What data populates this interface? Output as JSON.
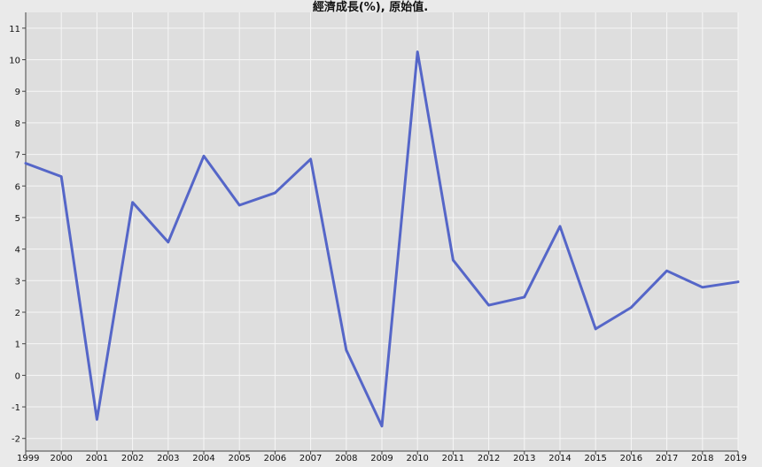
{
  "chart_data": {
    "type": "line",
    "title": "經濟成長(%), 原始值.",
    "xlabel": "",
    "ylabel": "",
    "x": [
      1999,
      2000,
      2001,
      2002,
      2003,
      2004,
      2005,
      2006,
      2007,
      2008,
      2009,
      2010,
      2011,
      2012,
      2013,
      2014,
      2015,
      2016,
      2017,
      2018,
      2019
    ],
    "series": [
      {
        "values": [
          6.72,
          6.3,
          -1.4,
          5.48,
          4.22,
          6.95,
          5.39,
          5.78,
          6.85,
          0.8,
          -1.61,
          10.25,
          3.65,
          2.22,
          2.48,
          4.72,
          1.47,
          2.15,
          3.31,
          2.79,
          2.96
        ]
      }
    ],
    "ylim": [
      -2.4,
      11.5
    ],
    "yticks": [
      -2,
      -1,
      0,
      1,
      2,
      3,
      4,
      5,
      6,
      7,
      8,
      9,
      10,
      11
    ],
    "grid": true,
    "line_color": "#5566c8",
    "plot_background": "#dedede",
    "grid_color": "#f6f6f6"
  }
}
